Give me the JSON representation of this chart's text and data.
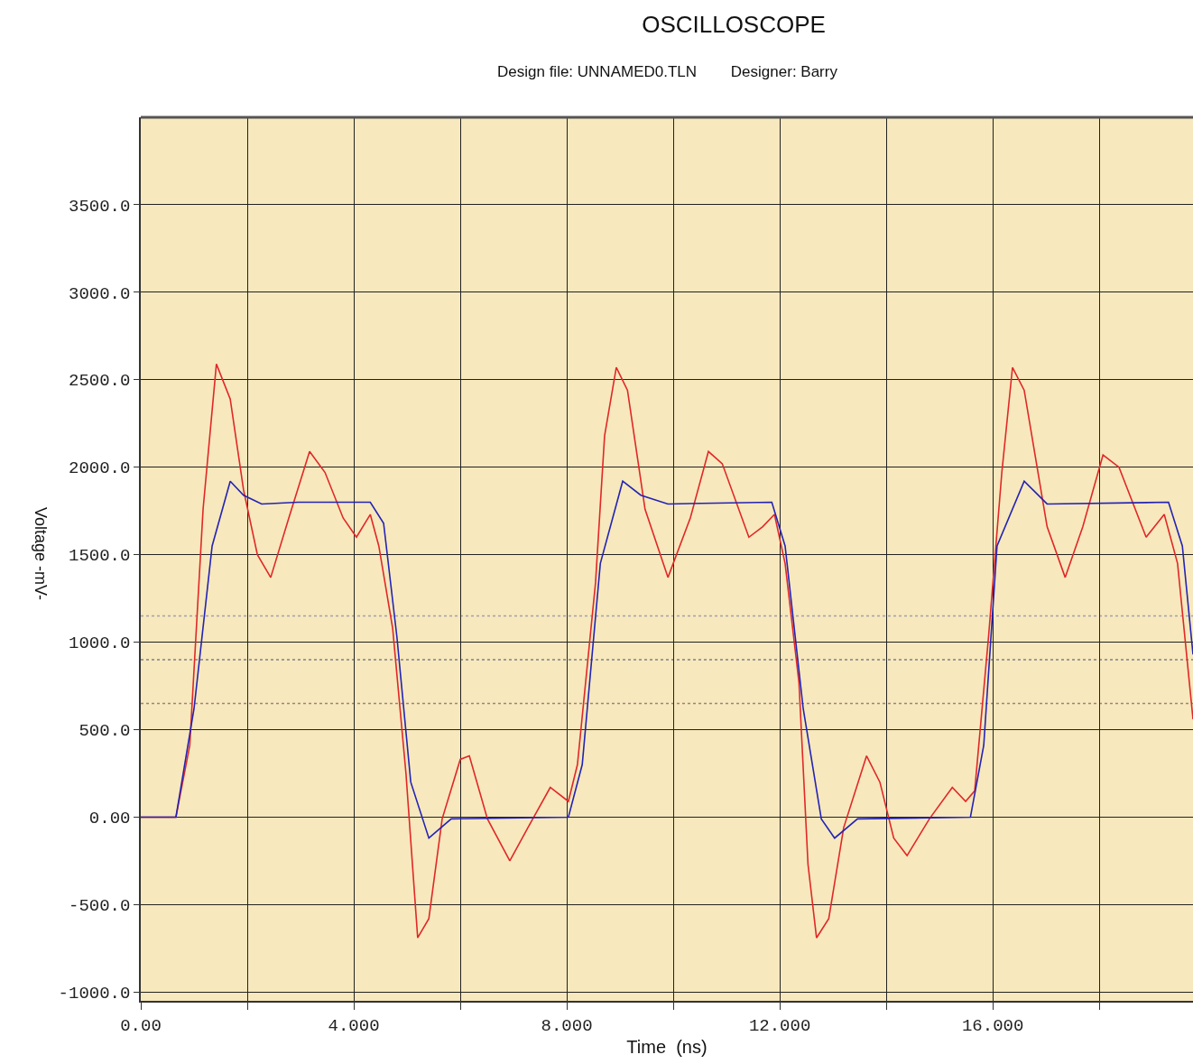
{
  "chart_data": {
    "type": "line",
    "title": "OSCILLOSCOPE",
    "subtitle": "Design file: UNNAMED0.TLN        Designer: Barry",
    "xlabel": "Time  (ns)",
    "ylabel": "Voltage -mV-",
    "series": [
      {
        "color": "#e02828",
        "x": [
          0,
          0.66,
          0.92,
          1.17,
          1.42,
          1.68,
          1.93,
          2.19,
          2.44,
          2.78,
          3.17,
          3.46,
          3.8,
          4.05,
          4.31,
          4.47,
          4.73,
          4.98,
          5.2,
          5.41,
          5.66,
          6.0,
          6.17,
          6.51,
          6.93,
          7.27,
          7.69,
          8.03,
          8.2,
          8.54,
          8.71,
          8.93,
          9.14,
          9.47,
          9.9,
          10.32,
          10.66,
          10.92,
          11.42,
          11.68,
          11.9,
          12.1,
          12.36,
          12.53,
          12.69,
          12.92,
          13.2,
          13.63,
          13.88,
          14.14,
          14.39,
          14.81,
          15.24,
          15.49,
          15.66,
          15.92,
          16.17,
          16.37,
          16.59,
          17.02,
          17.36,
          17.69,
          18.07,
          18.37,
          18.88,
          19.22,
          19.47,
          19.76
        ],
        "values": [
          0,
          0,
          410,
          1760,
          2590,
          2390,
          1870,
          1500,
          1370,
          1710,
          2090,
          1970,
          1710,
          1600,
          1730,
          1550,
          1080,
          250,
          -690,
          -580,
          -10,
          330,
          350,
          -10,
          -250,
          -60,
          170,
          90,
          300,
          1340,
          2180,
          2570,
          2440,
          1760,
          1370,
          1710,
          2090,
          2020,
          1600,
          1660,
          1730,
          1450,
          770,
          -270,
          -690,
          -580,
          -60,
          350,
          200,
          -120,
          -220,
          -10,
          170,
          90,
          150,
          1030,
          1970,
          2570,
          2440,
          1660,
          1370,
          1660,
          2070,
          2000,
          1600,
          1730,
          1450,
          560
        ]
      },
      {
        "color": "#2323b4",
        "x": [
          0,
          0.66,
          1.0,
          1.34,
          1.68,
          1.93,
          2.27,
          2.95,
          4.31,
          4.56,
          4.81,
          5.07,
          5.41,
          5.83,
          8.03,
          8.29,
          8.63,
          9.05,
          9.39,
          9.9,
          11.85,
          12.1,
          12.44,
          12.78,
          13.03,
          13.46,
          15.58,
          15.83,
          16.08,
          16.59,
          17.02,
          19.3,
          19.56,
          19.76
        ],
        "values": [
          0,
          0,
          620,
          1550,
          1920,
          1840,
          1790,
          1800,
          1800,
          1680,
          1030,
          200,
          -120,
          -10,
          0,
          300,
          1450,
          1920,
          1840,
          1790,
          1800,
          1550,
          620,
          -10,
          -120,
          -10,
          0,
          410,
          1550,
          1920,
          1790,
          1800,
          1550,
          930
        ]
      }
    ],
    "xlim": [
      0,
      19.76
    ],
    "xticks": [
      {
        "value": 0,
        "label": "0.00"
      },
      {
        "value": 2,
        "label": null
      },
      {
        "value": 4,
        "label": "4.000"
      },
      {
        "value": 6,
        "label": null
      },
      {
        "value": 8,
        "label": "8.000"
      },
      {
        "value": 10,
        "label": null
      },
      {
        "value": 12,
        "label": "12.000"
      },
      {
        "value": 14,
        "label": null
      },
      {
        "value": 16,
        "label": "16.000"
      },
      {
        "value": 18,
        "label": null
      }
    ],
    "ylim": [
      -1050,
      4000
    ],
    "yticks": [
      {
        "value": -1000,
        "label": "-1000.0"
      },
      {
        "value": -500,
        "label": "-500.0"
      },
      {
        "value": 0,
        "label": "0.00"
      },
      {
        "value": 500,
        "label": "500.0"
      },
      {
        "value": 1000,
        "label": "1000.0"
      },
      {
        "value": 1500,
        "label": "1500.0"
      },
      {
        "value": 2000,
        "label": "2000.0"
      },
      {
        "value": 2500,
        "label": "2500.0"
      },
      {
        "value": 3000,
        "label": "3000.0"
      },
      {
        "value": 3500,
        "label": "3500.0"
      }
    ],
    "ref_lines": [
      {
        "axis": "y",
        "value": 1150,
        "color": "#a0a0b0",
        "line_style": "dotted"
      },
      {
        "axis": "y",
        "value": 900,
        "color": "#808080",
        "line_style": "dotted"
      },
      {
        "axis": "y",
        "value": 650,
        "color": "#a08080",
        "line_style": "dotted"
      }
    ],
    "grid": true
  }
}
